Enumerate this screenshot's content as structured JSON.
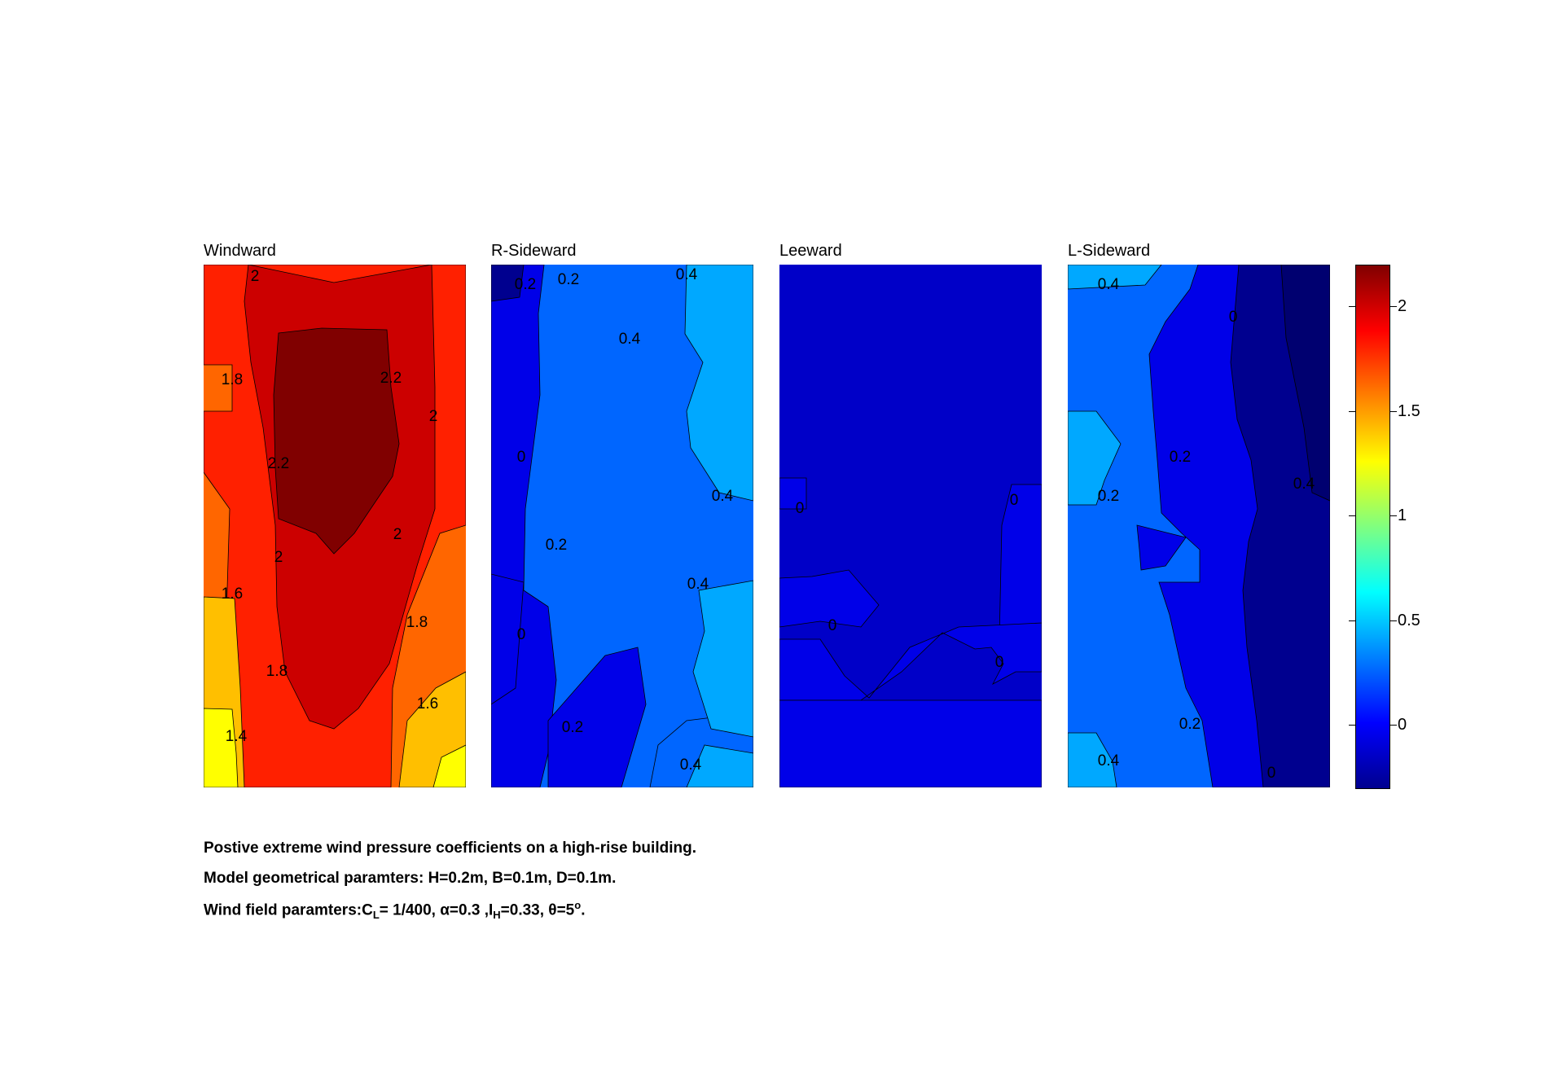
{
  "chart_data": {
    "type": "heatmap",
    "subtype": "filled contour",
    "colormap": "jet",
    "color_range": [
      -0.3,
      2.2
    ],
    "colorbar": {
      "ticks": [
        2,
        1.5,
        1,
        0.5,
        0
      ],
      "tick_labels": [
        "2",
        "1.5",
        "1",
        "0.5",
        "0"
      ],
      "colors": {
        "-0.3": "#00008F",
        "0": "#0000E8",
        "0.2": "#0066FF",
        "0.4": "#00A8FF",
        "1.0": "#40FFBF",
        "1.4": "#FFFF00",
        "1.6": "#FFBF00",
        "1.8": "#FF6600",
        "2.0": "#FF2000",
        "2.2": "#CC0000",
        "max": "#800000"
      }
    },
    "panels": [
      {
        "title": "Windward",
        "levels": [
          1.4,
          1.6,
          1.8,
          2,
          2.2
        ],
        "contour_labels": [
          "2",
          "1.8",
          "2.2",
          "2",
          "2.2",
          "2",
          "2",
          "1.6",
          "1.8",
          "1.8",
          "1.6",
          "1.4"
        ],
        "range": [
          1.3,
          2.3
        ]
      },
      {
        "title": "R-Sideward",
        "levels": [
          0,
          0.2,
          0.4
        ],
        "contour_labels": [
          "0.2",
          "0.2",
          "0.4",
          "0.4",
          "0",
          "0.4",
          "0.2",
          "0.4",
          "0",
          "0.2",
          "0.4"
        ],
        "range": [
          -0.2,
          0.5
        ]
      },
      {
        "title": "Leeward",
        "levels": [
          0
        ],
        "contour_labels": [
          "0",
          "0",
          "0",
          "0"
        ],
        "range": [
          -0.2,
          0.1
        ]
      },
      {
        "title": "L-Sideward",
        "levels": [
          0,
          0.2,
          0.4
        ],
        "contour_labels": [
          "0.4",
          "0",
          "0.2",
          "0.2",
          "0.4",
          "0.2",
          "0.4",
          "0"
        ],
        "range": [
          -0.25,
          0.5
        ]
      }
    ]
  },
  "caption": {
    "line1": "Postive extreme  wind pressure coefficients on a high-rise building.",
    "line2": "Model geometrical paramters: H=0.2m, B=0.1m, D=0.1m.",
    "line3_parts": {
      "a": "Wind field paramters:C",
      "sub1": "L",
      "b": "= 1/400, α=0.3 ,I",
      "sub2": "H",
      "c": "=0.33, θ=5",
      "sup": "o",
      "d": "."
    }
  }
}
